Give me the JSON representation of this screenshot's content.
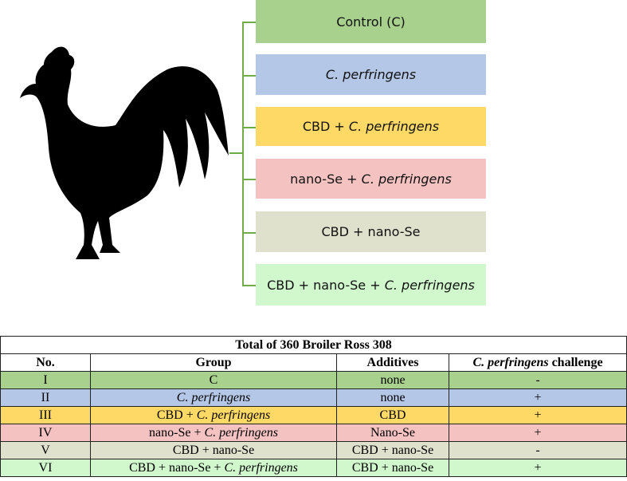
{
  "colors": {
    "green": "#a9d18e",
    "blue": "#b4c7e7",
    "yellow": "#ffd966",
    "pink": "#f4c2c0",
    "grey": "#dfe1cc",
    "lightgreen": "#d0f8cc",
    "bracket": "#70ad47"
  },
  "icon": "rooster-silhouette",
  "groups": [
    {
      "plain": "Control (C)",
      "italic": ""
    },
    {
      "plain": "",
      "italic": "C. perfringens"
    },
    {
      "plain": "CBD + ",
      "italic": "C. perfringens"
    },
    {
      "plain": "nano-Se + ",
      "italic": "C. perfringens"
    },
    {
      "plain": "CBD + nano-Se",
      "italic": ""
    },
    {
      "plain": "CBD + nano-Se + ",
      "italic": "C. perfringens"
    }
  ],
  "table": {
    "title": "Total of 360 Broiler Ross 308",
    "headers": {
      "no": "No.",
      "group": "Group",
      "additives": "Additives",
      "challenge_italic": "C. perfringens",
      "challenge_plain": " challenge"
    },
    "rows": [
      {
        "no": "I",
        "group_plain": "C",
        "group_italic": "",
        "additives": "none",
        "challenge": "-"
      },
      {
        "no": "II",
        "group_plain": "",
        "group_italic": "C. perfringens",
        "additives": "none",
        "challenge": "+"
      },
      {
        "no": "III",
        "group_plain": "CBD + ",
        "group_italic": "C. perfringens",
        "additives": "CBD",
        "challenge": "+"
      },
      {
        "no": "IV",
        "group_plain": "nano-Se + ",
        "group_italic": "C. perfringens",
        "additives": "Nano-Se",
        "challenge": "+"
      },
      {
        "no": "V",
        "group_plain": "CBD + nano-Se",
        "group_italic": "",
        "additives": "CBD + nano-Se",
        "challenge": "-"
      },
      {
        "no": "VI",
        "group_plain": "CBD + nano-Se + ",
        "group_italic": "C. perfringens",
        "additives": "CBD + nano-Se",
        "challenge": "+"
      }
    ]
  }
}
